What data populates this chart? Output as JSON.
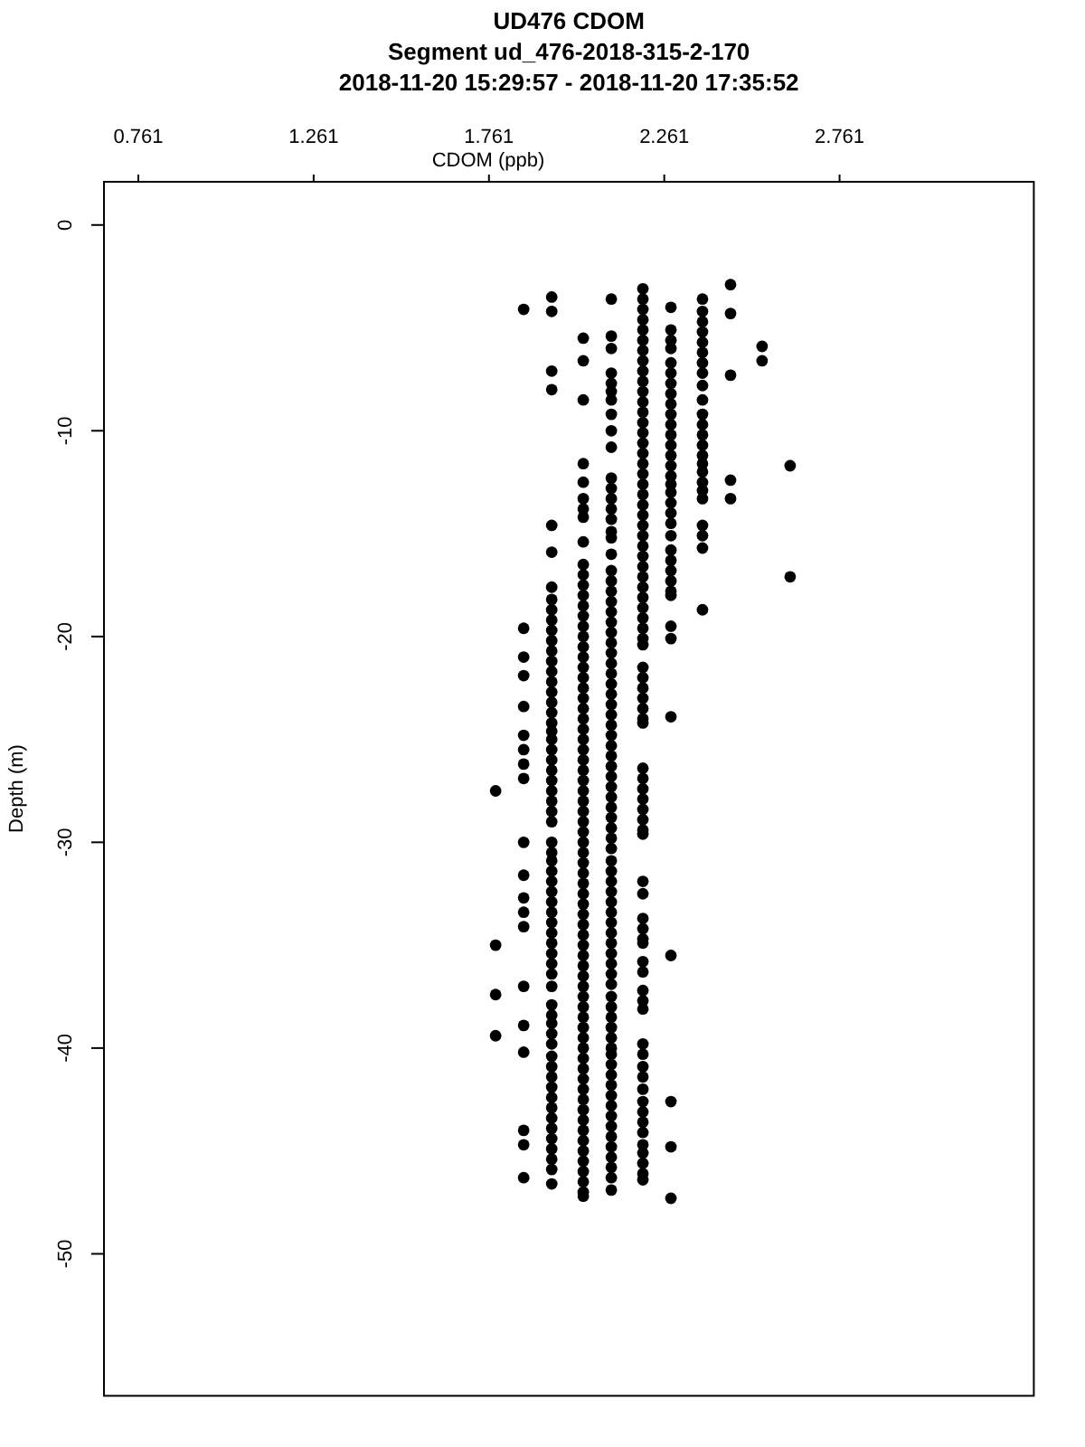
{
  "chart_data": {
    "type": "scatter",
    "title": "UD476 CDOM",
    "subtitle": "Segment ud_476-2018-315-2-170\n2018-11-20 15:29:57 - 2018-11-20 17:35:52",
    "xlabel": "CDOM (ppb)",
    "ylabel": "Depth (m)",
    "color": "#000000",
    "marker": "circle",
    "xlim": [
      0.663,
      3.315
    ],
    "xticks": [
      0.761,
      1.261,
      1.761,
      2.261,
      2.761
    ],
    "ylim": [
      -56.9,
      2.1
    ],
    "yticks": [
      0,
      -10,
      -20,
      -30,
      -40,
      -50
    ],
    "x": [
      1.78,
      1.78,
      1.78,
      1.78,
      1.86,
      1.86,
      1.86,
      1.86,
      1.86,
      1.86,
      1.86,
      1.86,
      1.86,
      1.86,
      1.86,
      1.86,
      1.86,
      1.86,
      1.86,
      1.86,
      1.86,
      1.86,
      1.86,
      1.86,
      1.94,
      1.94,
      1.94,
      1.94,
      1.94,
      1.94,
      1.94,
      1.94,
      1.94,
      1.94,
      1.94,
      1.94,
      1.94,
      1.94,
      1.94,
      1.94,
      1.94,
      1.94,
      1.94,
      1.94,
      1.94,
      1.94,
      1.94,
      1.94,
      1.94,
      1.94,
      1.94,
      1.94,
      1.94,
      1.94,
      1.94,
      1.94,
      1.94,
      1.94,
      1.94,
      1.94,
      1.94,
      1.94,
      1.94,
      1.94,
      1.94,
      1.94,
      1.94,
      1.94,
      1.94,
      1.94,
      1.94,
      1.94,
      1.94,
      1.94,
      1.94,
      1.94,
      1.94,
      1.94,
      1.94,
      1.94,
      1.94,
      1.94,
      1.94,
      1.94,
      1.94,
      1.94,
      1.94,
      2.03,
      2.03,
      2.03,
      2.03,
      2.03,
      2.03,
      2.03,
      2.03,
      2.03,
      2.03,
      2.03,
      2.03,
      2.03,
      2.03,
      2.03,
      2.03,
      2.03,
      2.03,
      2.03,
      2.03,
      2.03,
      2.03,
      2.03,
      2.03,
      2.03,
      2.03,
      2.03,
      2.03,
      2.03,
      2.03,
      2.03,
      2.03,
      2.03,
      2.03,
      2.03,
      2.03,
      2.03,
      2.03,
      2.03,
      2.03,
      2.03,
      2.03,
      2.03,
      2.03,
      2.03,
      2.03,
      2.03,
      2.03,
      2.03,
      2.03,
      2.03,
      2.03,
      2.03,
      2.03,
      2.03,
      2.03,
      2.03,
      2.03,
      2.03,
      2.03,
      2.03,
      2.03,
      2.03,
      2.03,
      2.03,
      2.03,
      2.03,
      2.03,
      2.03,
      2.03,
      2.03,
      2.03,
      2.11,
      2.11,
      2.11,
      2.11,
      2.11,
      2.11,
      2.11,
      2.11,
      2.11,
      2.11,
      2.11,
      2.11,
      2.11,
      2.11,
      2.11,
      2.11,
      2.11,
      2.11,
      2.11,
      2.11,
      2.11,
      2.11,
      2.11,
      2.11,
      2.11,
      2.11,
      2.11,
      2.11,
      2.11,
      2.11,
      2.11,
      2.11,
      2.11,
      2.11,
      2.11,
      2.11,
      2.11,
      2.11,
      2.11,
      2.11,
      2.11,
      2.11,
      2.11,
      2.11,
      2.11,
      2.11,
      2.11,
      2.11,
      2.11,
      2.11,
      2.11,
      2.11,
      2.11,
      2.11,
      2.11,
      2.11,
      2.11,
      2.11,
      2.11,
      2.11,
      2.11,
      2.11,
      2.11,
      2.11,
      2.11,
      2.11,
      2.11,
      2.11,
      2.11,
      2.11,
      2.11,
      2.11,
      2.11,
      2.11,
      2.11,
      2.11,
      2.11,
      2.11,
      2.11,
      2.2,
      2.2,
      2.2,
      2.2,
      2.2,
      2.2,
      2.2,
      2.2,
      2.2,
      2.2,
      2.2,
      2.2,
      2.2,
      2.2,
      2.2,
      2.2,
      2.2,
      2.2,
      2.2,
      2.2,
      2.2,
      2.2,
      2.2,
      2.2,
      2.2,
      2.2,
      2.2,
      2.2,
      2.2,
      2.2,
      2.2,
      2.2,
      2.2,
      2.2,
      2.2,
      2.2,
      2.2,
      2.2,
      2.2,
      2.2,
      2.2,
      2.2,
      2.2,
      2.2,
      2.2,
      2.2,
      2.2,
      2.2,
      2.2,
      2.2,
      2.2,
      2.2,
      2.2,
      2.2,
      2.2,
      2.2,
      2.2,
      2.2,
      2.2,
      2.2,
      2.2,
      2.2,
      2.2,
      2.2,
      2.2,
      2.2,
      2.2,
      2.2,
      2.2,
      2.2,
      2.2,
      2.2,
      2.2,
      2.2,
      2.2,
      2.2,
      2.28,
      2.28,
      2.28,
      2.28,
      2.28,
      2.28,
      2.28,
      2.28,
      2.28,
      2.28,
      2.28,
      2.28,
      2.28,
      2.28,
      2.28,
      2.28,
      2.28,
      2.28,
      2.28,
      2.28,
      2.28,
      2.28,
      2.28,
      2.28,
      2.28,
      2.28,
      2.28,
      2.28,
      2.28,
      2.28,
      2.28,
      2.28,
      2.28,
      2.28,
      2.28,
      2.37,
      2.37,
      2.37,
      2.37,
      2.37,
      2.37,
      2.37,
      2.37,
      2.37,
      2.37,
      2.37,
      2.37,
      2.37,
      2.37,
      2.37,
      2.37,
      2.37,
      2.37,
      2.37,
      2.37,
      2.37,
      2.37,
      2.37,
      2.37,
      2.45,
      2.45,
      2.45,
      2.45,
      2.45,
      2.54,
      2.54,
      2.62,
      2.62
    ],
    "values": [
      -27.5,
      -35.0,
      -37.4,
      -39.4,
      -4.1,
      -19.6,
      -21.0,
      -21.9,
      -23.4,
      -24.8,
      -25.5,
      -26.2,
      -26.9,
      -30.0,
      -31.6,
      -32.7,
      -33.4,
      -34.1,
      -37.0,
      -38.9,
      -40.2,
      -44.0,
      -44.7,
      -46.3,
      -3.5,
      -4.2,
      -7.1,
      -8.0,
      -14.6,
      -15.9,
      -17.6,
      -18.2,
      -18.7,
      -19.2,
      -19.7,
      -20.2,
      -20.7,
      -21.2,
      -21.7,
      -22.2,
      -22.7,
      -23.2,
      -23.7,
      -24.2,
      -24.6,
      -25.0,
      -25.5,
      -26.0,
      -26.5,
      -27.0,
      -27.5,
      -28.0,
      -28.5,
      -29.0,
      -30.0,
      -30.5,
      -30.9,
      -31.4,
      -31.9,
      -32.4,
      -32.9,
      -33.4,
      -33.9,
      -34.4,
      -34.9,
      -35.4,
      -35.9,
      -36.4,
      -37.0,
      -37.9,
      -38.4,
      -38.8,
      -39.3,
      -39.8,
      -40.4,
      -40.9,
      -41.4,
      -41.9,
      -42.4,
      -42.9,
      -43.4,
      -43.9,
      -44.4,
      -44.9,
      -45.4,
      -45.9,
      -46.6,
      -5.5,
      -6.6,
      -8.5,
      -11.6,
      -12.5,
      -13.3,
      -13.8,
      -14.2,
      -15.4,
      -16.5,
      -17.0,
      -17.5,
      -18.0,
      -18.5,
      -19.0,
      -19.5,
      -20.0,
      -20.5,
      -21.0,
      -21.5,
      -22.0,
      -22.5,
      -23.0,
      -23.5,
      -24.0,
      -24.5,
      -25.0,
      -25.5,
      -26.0,
      -26.5,
      -27.0,
      -27.5,
      -28.0,
      -28.5,
      -29.0,
      -29.5,
      -30.0,
      -30.5,
      -31.0,
      -31.5,
      -32.0,
      -32.5,
      -33.0,
      -33.5,
      -34.0,
      -34.5,
      -35.0,
      -35.5,
      -36.0,
      -36.5,
      -37.0,
      -37.5,
      -38.0,
      -38.5,
      -39.0,
      -39.5,
      -40.0,
      -40.5,
      -41.0,
      -41.5,
      -42.0,
      -42.5,
      -43.0,
      -43.5,
      -44.0,
      -44.5,
      -45.0,
      -45.5,
      -46.0,
      -46.5,
      -47.0,
      -47.2,
      -3.6,
      -5.4,
      -6.0,
      -7.2,
      -7.7,
      -8.1,
      -8.5,
      -9.2,
      -10.0,
      -10.8,
      -12.3,
      -12.8,
      -13.3,
      -13.8,
      -14.3,
      -14.9,
      -15.2,
      -16.0,
      -16.8,
      -17.3,
      -17.8,
      -18.3,
      -18.8,
      -19.3,
      -19.8,
      -20.3,
      -20.8,
      -21.3,
      -21.8,
      -22.3,
      -22.8,
      -23.3,
      -23.8,
      -24.3,
      -24.8,
      -25.3,
      -25.8,
      -26.3,
      -26.8,
      -27.3,
      -27.8,
      -28.3,
      -28.8,
      -29.3,
      -29.8,
      -30.3,
      -30.9,
      -31.4,
      -31.9,
      -32.4,
      -32.9,
      -33.4,
      -33.9,
      -34.4,
      -34.9,
      -35.4,
      -35.9,
      -36.4,
      -36.9,
      -37.5,
      -38.0,
      -38.5,
      -39.0,
      -39.5,
      -40.0,
      -40.3,
      -40.8,
      -41.3,
      -41.8,
      -42.3,
      -42.8,
      -43.3,
      -43.8,
      -44.3,
      -44.8,
      -45.3,
      -45.8,
      -46.3,
      -46.9,
      -3.1,
      -3.6,
      -4.1,
      -4.6,
      -5.1,
      -5.6,
      -6.1,
      -6.6,
      -7.1,
      -7.6,
      -8.1,
      -8.6,
      -9.1,
      -9.6,
      -10.1,
      -10.6,
      -11.1,
      -11.6,
      -12.1,
      -12.6,
      -13.1,
      -13.6,
      -14.1,
      -14.6,
      -15.1,
      -15.6,
      -16.1,
      -16.6,
      -17.1,
      -17.6,
      -18.1,
      -18.6,
      -19.1,
      -19.6,
      -20.1,
      -20.4,
      -21.5,
      -22.0,
      -22.5,
      -23.0,
      -23.5,
      -24.0,
      -24.2,
      -26.4,
      -26.9,
      -27.4,
      -27.9,
      -28.4,
      -28.9,
      -29.4,
      -29.6,
      -31.9,
      -32.5,
      -33.7,
      -34.2,
      -34.7,
      -34.9,
      -35.8,
      -36.3,
      -37.2,
      -37.7,
      -38.1,
      -39.8,
      -40.3,
      -40.9,
      -41.4,
      -42.0,
      -42.6,
      -43.1,
      -43.6,
      -44.1,
      -44.7,
      -45.1,
      -45.6,
      -46.1,
      -46.4,
      -4.0,
      -5.1,
      -5.6,
      -6.0,
      -6.7,
      -7.2,
      -7.7,
      -8.2,
      -8.7,
      -9.2,
      -9.7,
      -10.2,
      -10.7,
      -11.2,
      -11.7,
      -12.2,
      -12.6,
      -13.0,
      -13.5,
      -14.0,
      -14.5,
      -15.1,
      -15.8,
      -16.3,
      -16.8,
      -17.3,
      -17.8,
      -18.0,
      -19.5,
      -20.1,
      -23.9,
      -35.5,
      -42.6,
      -44.8,
      -47.3,
      -3.6,
      -4.2,
      -4.7,
      -5.2,
      -5.7,
      -6.2,
      -6.7,
      -7.2,
      -7.8,
      -8.5,
      -9.2,
      -9.7,
      -10.2,
      -10.7,
      -11.2,
      -11.6,
      -12.0,
      -12.5,
      -12.9,
      -13.3,
      -14.6,
      -15.1,
      -15.7,
      -18.7,
      -2.9,
      -4.3,
      -7.3,
      -12.4,
      -13.3,
      -5.9,
      -6.6,
      -11.7,
      -17.1
    ]
  }
}
